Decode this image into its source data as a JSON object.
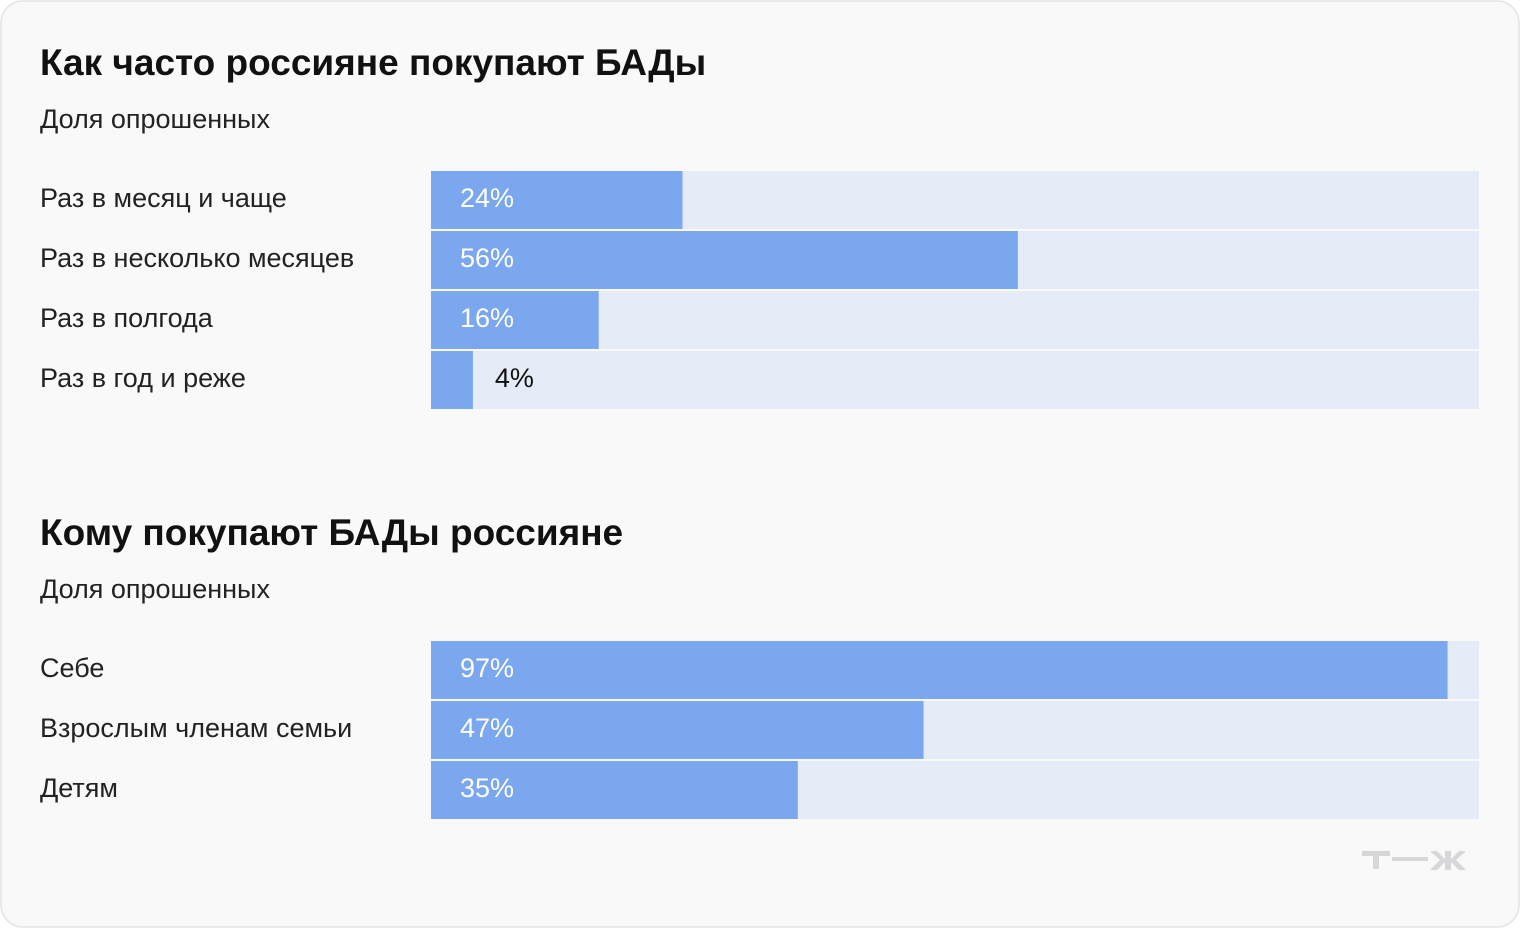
{
  "chart_data": [
    {
      "type": "hbar",
      "title": "Как часто россияне покупают БАДы",
      "subtitle": "Доля опрошенных",
      "categories": [
        "Раз в месяц и чаще",
        "Раз в несколько месяцев",
        "Раз в полгода",
        "Раз в год и реже"
      ],
      "values": [
        24,
        56,
        16,
        4
      ],
      "value_labels": [
        "24%",
        "56%",
        "16%",
        "4%"
      ],
      "xlim": [
        0,
        100
      ],
      "color": "#7aa7ee",
      "track_color": "#e6ecf7"
    },
    {
      "type": "hbar",
      "title": "Кому покупают БАДы россияне",
      "subtitle": "Доля опрошенных",
      "categories": [
        "Себе",
        "Взрослым членам семьи",
        "Детям"
      ],
      "values": [
        97,
        47,
        35
      ],
      "value_labels": [
        "97%",
        "47%",
        "35%"
      ],
      "xlim": [
        0,
        100
      ],
      "color": "#7aa7ee",
      "track_color": "#e6ecf7"
    }
  ]
}
